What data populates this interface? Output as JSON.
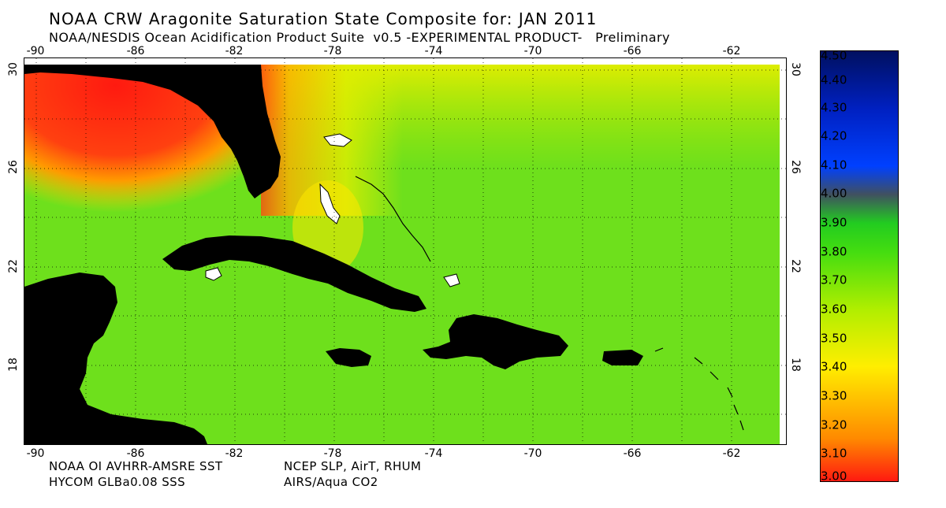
{
  "title": "NOAA CRW Aragonite Saturation State Composite for: JAN 2011",
  "subtitle": "NOAA/NESDIS Ocean Acidification Product Suite  v0.5 -EXPERIMENTAL PRODUCT-   Preliminary",
  "footer": {
    "line1_left": "NOAA OI AVHRR-AMSRE SST",
    "line2_left": "HYCOM GLBa0.08 SSS",
    "line1_right": "NCEP SLP, AirT, RHUM",
    "line2_right": "AIRS/Aqua CO2"
  },
  "map": {
    "lon_ticks": [
      "-90",
      "-86",
      "-82",
      "-78",
      "-74",
      "-70",
      "-66",
      "-62"
    ],
    "lat_ticks": [
      "30",
      "26",
      "22",
      "18"
    ],
    "ocean_color": "#66e01a",
    "land_color": "#000000"
  },
  "colorbar": {
    "labels": [
      "4.50",
      "4.40",
      "4.30",
      "4.20",
      "4.10",
      "4.00",
      "3.90",
      "3.80",
      "3.70",
      "3.60",
      "3.50",
      "3.40",
      "3.30",
      "3.20",
      "3.10",
      "3.00"
    ],
    "stops": [
      {
        "value": 3.0,
        "color": "#ff1a10"
      },
      {
        "value": 3.15,
        "color": "#ff8a00"
      },
      {
        "value": 3.4,
        "color": "#ffee00"
      },
      {
        "value": 3.6,
        "color": "#b0ee00"
      },
      {
        "value": 3.8,
        "color": "#44dd10"
      },
      {
        "value": 3.9,
        "color": "#22cc20"
      },
      {
        "value": 4.0,
        "color": "#405060"
      },
      {
        "value": 4.1,
        "color": "#0040ff"
      },
      {
        "value": 4.3,
        "color": "#0020c0"
      },
      {
        "value": 4.5,
        "color": "#001060"
      }
    ]
  }
}
